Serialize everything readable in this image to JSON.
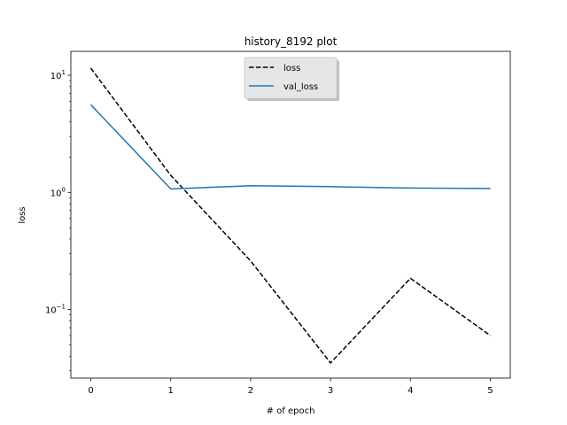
{
  "chart_data": {
    "type": "line",
    "title": "history_8192 plot",
    "xlabel": "# of epoch",
    "ylabel": "loss",
    "yscale": "log",
    "xlim": [
      -0.25,
      5.25
    ],
    "ylim": [
      0.026,
      16
    ],
    "x_ticks": [
      0,
      1,
      2,
      3,
      4,
      5
    ],
    "x_tick_labels": [
      "0",
      "1",
      "2",
      "3",
      "4",
      "5"
    ],
    "y_ticks": [
      {
        "value": 10,
        "base": "10",
        "exp": "1"
      },
      {
        "value": 1,
        "base": "10",
        "exp": "0"
      },
      {
        "value": 0.1,
        "base": "10",
        "exp": "−1"
      }
    ],
    "grid": false,
    "legend_position": "upper center",
    "x": [
      0,
      1,
      2,
      3,
      4,
      5
    ],
    "series": [
      {
        "name": "loss",
        "values": [
          11.5,
          1.4,
          0.26,
          0.035,
          0.185,
          0.06
        ],
        "color": "#000000",
        "style": "dashed"
      },
      {
        "name": "val_loss",
        "values": [
          5.6,
          1.07,
          1.14,
          1.12,
          1.09,
          1.08
        ],
        "color": "#1f77b4",
        "style": "solid"
      }
    ]
  }
}
